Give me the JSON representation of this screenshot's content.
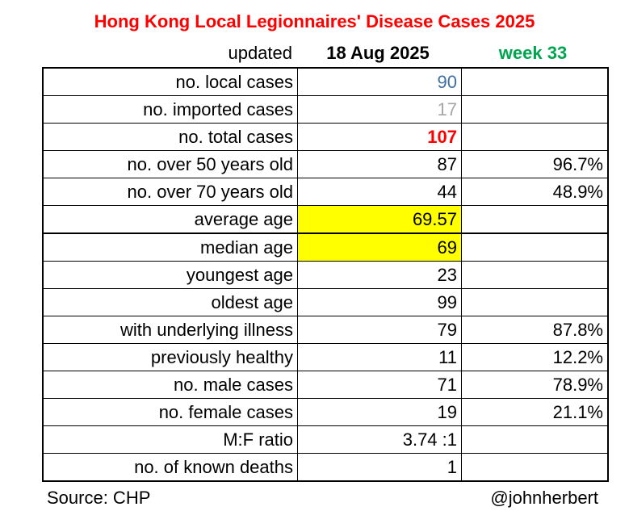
{
  "title": "Hong Kong Local Legionnaires' Disease Cases 2025",
  "header": {
    "updated_label": "updated",
    "date": "18 Aug 2025",
    "week": "week 33"
  },
  "colors": {
    "title": "#ff0000",
    "week": "#00a550",
    "local": "#3f6ea5",
    "imported": "#a6a6a6",
    "highlight": "#ffff00"
  },
  "rows": [
    {
      "label": "no. local cases",
      "value": "90",
      "pct": ""
    },
    {
      "label": "no. imported cases",
      "value": "17",
      "pct": ""
    },
    {
      "label": "no. total cases",
      "value": "107",
      "pct": ""
    },
    {
      "label": "no. over 50 years old",
      "value": "87",
      "pct": "96.7%"
    },
    {
      "label": "no. over 70 years old",
      "value": "44",
      "pct": "48.9%"
    },
    {
      "label": "average age",
      "value": "69.57",
      "pct": ""
    },
    {
      "label": "median age",
      "value": "69",
      "pct": ""
    },
    {
      "label": "youngest age",
      "value": "23",
      "pct": ""
    },
    {
      "label": "oldest age",
      "value": "99",
      "pct": ""
    },
    {
      "label": "with underlying illness",
      "value": "79",
      "pct": "87.8%"
    },
    {
      "label": "previously healthy",
      "value": "11",
      "pct": "12.2%"
    },
    {
      "label": "no. male cases",
      "value": "71",
      "pct": "78.9%"
    },
    {
      "label": "no. female cases",
      "value": "19",
      "pct": "21.1%"
    },
    {
      "label": "M:F ratio",
      "value": "3.74 :1",
      "pct": ""
    },
    {
      "label": "no. of known deaths",
      "value": "1",
      "pct": ""
    }
  ],
  "footer": {
    "source": "Source: CHP",
    "credit": "@johnherbert"
  }
}
